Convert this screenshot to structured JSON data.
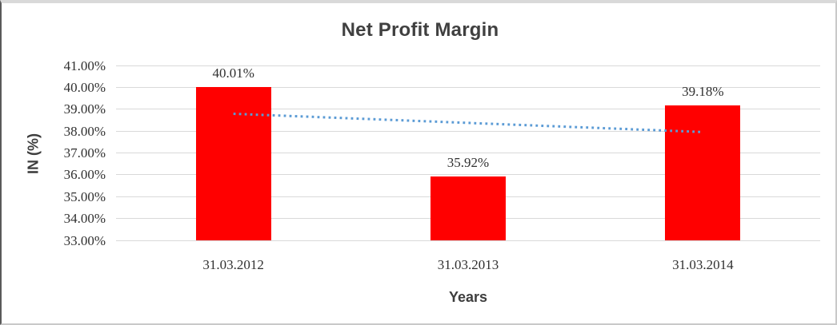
{
  "chart_data": {
    "type": "bar",
    "title": "Net Profit Margin",
    "xlabel": "Years",
    "ylabel": "IN (%)",
    "categories": [
      "31.03.2012",
      "31.03.2013",
      "31.03.2014"
    ],
    "values": [
      40.01,
      35.92,
      39.18
    ],
    "data_labels": [
      "40.01%",
      "35.92%",
      "39.18%"
    ],
    "y_tick_values": [
      41,
      40,
      39,
      38,
      37,
      36,
      35,
      34,
      33
    ],
    "y_tick_labels": [
      "41.00%",
      "40.00%",
      "39.00%",
      "38.00%",
      "37.00%",
      "36.00%",
      "35.00%",
      "34.00%",
      "33.00%"
    ],
    "ylim": [
      33,
      41
    ],
    "grid": true,
    "legend": false,
    "bar_color": "#ff0000",
    "gridline_color": "#d9d9d9",
    "text_color": "#303030",
    "title_color": "#404040",
    "trendline": {
      "style": "dotted",
      "color": "#5b9bd5",
      "start_value": 38.79,
      "end_value": 37.96
    }
  }
}
